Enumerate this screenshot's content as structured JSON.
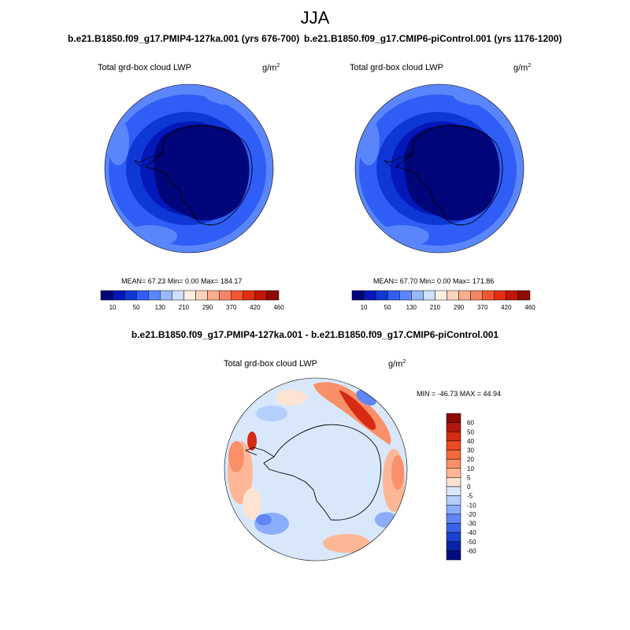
{
  "figure": {
    "season": "JJA",
    "units_base": "g/m",
    "units_exp": "2",
    "variable": "Total grd-box cloud LWP"
  },
  "panels": [
    {
      "run_title": "b.e21.B1850.f09_g17.PMIP4-127ka.001 (yrs 676-700)",
      "stats": "MEAN=  67.23  Min=   0.00  Max= 184.17"
    },
    {
      "run_title": "b.e21.B1850.f09_g17.CMIP6-piControl.001 (yrs 1176-1200)",
      "stats": "MEAN=  67.70  Min=   0.00  Max= 171.86"
    }
  ],
  "difference": {
    "title": "b.e21.B1850.f09_g17.PMIP4-127ka.001 - b.e21.B1850.f09_g17.CMIP6-piControl.001",
    "stats": "MIN = -46.73 MAX =  44.94"
  },
  "chart_data": [
    {
      "type": "heatmap",
      "projection": "south-polar-stereographic",
      "title": "b.e21.B1850.f09_g17.PMIP4-127ka.001 (yrs 676-700)",
      "variable": "Total grd-box cloud LWP",
      "units": "g/m2",
      "mean": 67.23,
      "min": 0.0,
      "max": 184.17,
      "colorbar_labels": [
        "10",
        "50",
        "130",
        "210",
        "290",
        "370",
        "420",
        "460"
      ],
      "colorbar_colors": [
        "#01057a",
        "#0318b8",
        "#0f37d6",
        "#2f5df5",
        "#5b86fb",
        "#98b8fc",
        "#cde0fe",
        "#fff0e2",
        "#fdd3bc",
        "#fbad8c",
        "#f58562",
        "#f0562f",
        "#e52d11",
        "#c21506",
        "#8f0a04"
      ]
    },
    {
      "type": "heatmap",
      "projection": "south-polar-stereographic",
      "title": "b.e21.B1850.f09_g17.CMIP6-piControl.001 (yrs 1176-1200)",
      "variable": "Total grd-box cloud LWP",
      "units": "g/m2",
      "mean": 67.7,
      "min": 0.0,
      "max": 171.86,
      "colorbar_labels": [
        "10",
        "50",
        "130",
        "210",
        "290",
        "370",
        "420",
        "460"
      ],
      "colorbar_colors": [
        "#01057a",
        "#0318b8",
        "#0f37d6",
        "#2f5df5",
        "#5b86fb",
        "#98b8fc",
        "#cde0fe",
        "#fff0e2",
        "#fdd3bc",
        "#fbad8c",
        "#f58562",
        "#f0562f",
        "#e52d11",
        "#c21506",
        "#8f0a04"
      ]
    },
    {
      "type": "heatmap",
      "projection": "south-polar-stereographic",
      "title": "b.e21.B1850.f09_g17.PMIP4-127ka.001 - b.e21.B1850.f09_g17.CMIP6-piControl.001",
      "variable": "Total grd-box cloud LWP",
      "units": "g/m2",
      "min": -46.73,
      "max": 44.94,
      "colorbar_labels": [
        "60",
        "50",
        "40",
        "30",
        "20",
        "10",
        "5",
        "0",
        "-5",
        "-10",
        "-20",
        "-30",
        "-40",
        "-50",
        "-60"
      ],
      "colorbar_colors": [
        "#8b0a06",
        "#b0170d",
        "#d42b12",
        "#ec4a22",
        "#f5693f",
        "#fa9069",
        "#fdb796",
        "#fde3d2",
        "#d8e8fa",
        "#b5cffb",
        "#8caefa",
        "#5f86f4",
        "#3a62e8",
        "#1c40cf",
        "#0a22a6",
        "#020e80"
      ]
    }
  ]
}
